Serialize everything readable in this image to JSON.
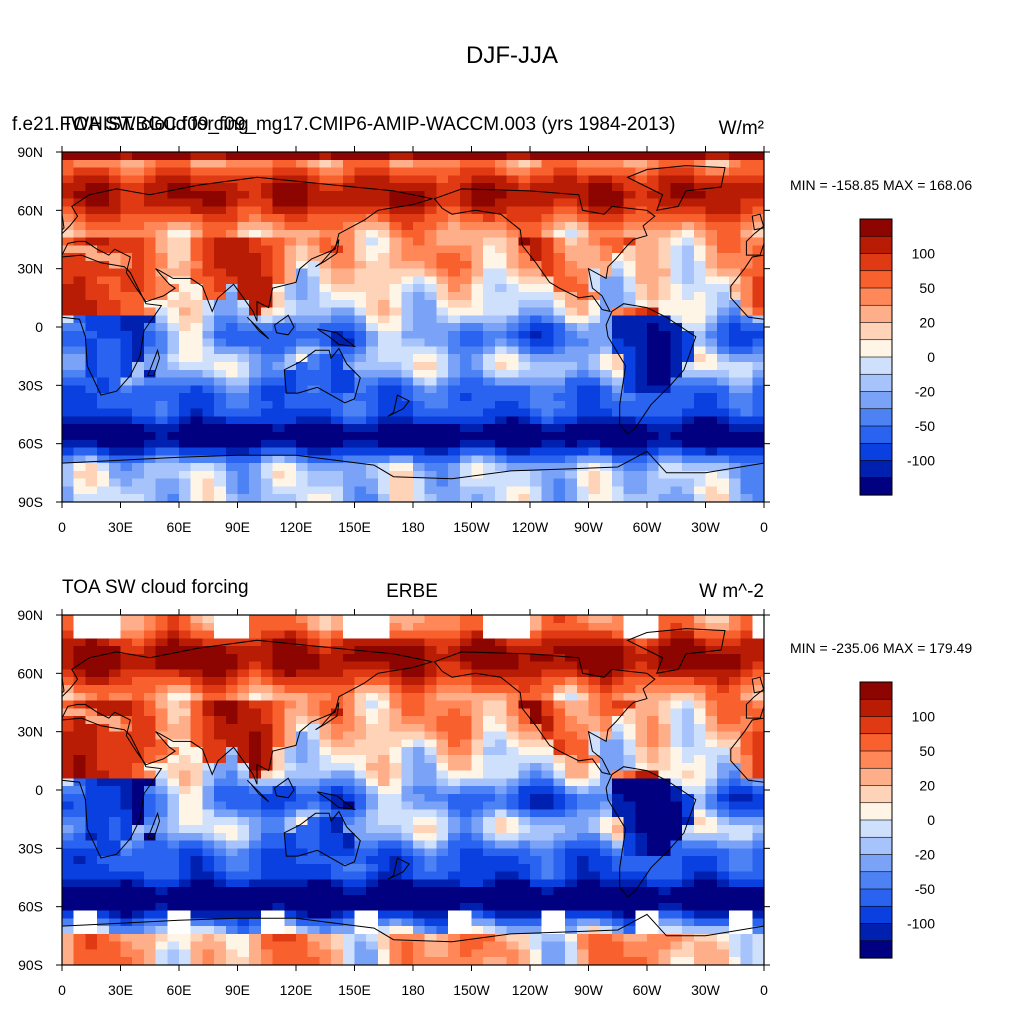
{
  "figure": {
    "title": "DJF-JJA"
  },
  "colors": {
    "palette": [
      "#000080",
      "#0020b0",
      "#0a3fe0",
      "#2a63f0",
      "#4d82f5",
      "#7aa3f8",
      "#a6c3fb",
      "#cfe0fd",
      "#fff5e6",
      "#ffd3b8",
      "#ffae8a",
      "#ff8758",
      "#f8602e",
      "#e03a14",
      "#b81c05",
      "#8c0500"
    ],
    "land_outline": "#000000",
    "missing": "#ffffff"
  },
  "chart_data": [
    {
      "type": "heatmap",
      "left_title": "f.e21.FWHIST.BGC.f09_f09_mg17.CMIP6-AMIP-WACCM.003 (yrs 1984-2013)",
      "center_title": "",
      "right_title": "W/m²",
      "overlap_title": "TOA SW cloud forcing",
      "stats": "MIN = -158.85 MAX = 168.06",
      "x_ticks": [
        "0",
        "30E",
        "60E",
        "90E",
        "120E",
        "150E",
        "180",
        "150W",
        "120W",
        "90W",
        "60W",
        "30W",
        "0"
      ],
      "y_ticks": [
        "90N",
        "60N",
        "30N",
        "0",
        "30S",
        "60S",
        "90S"
      ],
      "colorbar_levels": [
        -150,
        -125,
        -100,
        -75,
        -50,
        -35,
        -20,
        -10,
        0,
        10,
        20,
        35,
        50,
        75,
        100,
        125,
        150
      ],
      "colorbar_labels": [
        "100",
        "50",
        "20",
        "0",
        "-20",
        "-50",
        "-100"
      ],
      "min": -158.85,
      "max": 168.06,
      "xlim": [
        0,
        360
      ],
      "ylim": [
        -90,
        90
      ]
    },
    {
      "type": "heatmap",
      "left_title": "TOA SW cloud forcing",
      "center_title": "ERBE",
      "right_title": "W m^-2",
      "stats": "MIN = -235.06 MAX = 179.49",
      "x_ticks": [
        "0",
        "30E",
        "60E",
        "90E",
        "120E",
        "150E",
        "180",
        "150W",
        "120W",
        "90W",
        "60W",
        "30W",
        "0"
      ],
      "y_ticks": [
        "90N",
        "60N",
        "30N",
        "0",
        "30S",
        "60S",
        "90S"
      ],
      "colorbar_levels": [
        -150,
        -125,
        -100,
        -75,
        -50,
        -35,
        -20,
        -10,
        0,
        10,
        20,
        35,
        50,
        75,
        100,
        125,
        150
      ],
      "colorbar_labels": [
        "100",
        "50",
        "20",
        "0",
        "-20",
        "-50",
        "-100"
      ],
      "min": -235.06,
      "max": 179.49,
      "xlim": [
        0,
        360
      ],
      "ylim": [
        -90,
        90
      ]
    }
  ]
}
